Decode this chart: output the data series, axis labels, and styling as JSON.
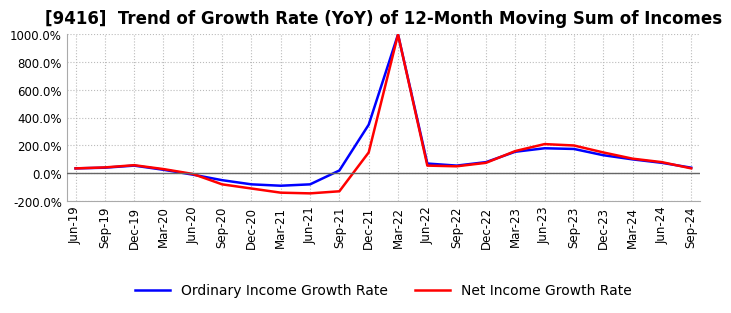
{
  "title": "[9416]  Trend of Growth Rate (YoY) of 12-Month Moving Sum of Incomes",
  "legend_labels": [
    "Ordinary Income Growth Rate",
    "Net Income Growth Rate"
  ],
  "line_colors": [
    "blue",
    "red"
  ],
  "ylim": [
    -200,
    1000
  ],
  "yticks": [
    -200,
    0,
    200,
    400,
    600,
    800,
    1000
  ],
  "ytick_labels": [
    "-200.0%",
    "0.0%",
    "200.0%",
    "400.0%",
    "600.0%",
    "800.0%",
    "1000.0%"
  ],
  "x_labels": [
    "Jun-19",
    "Sep-19",
    "Dec-19",
    "Mar-20",
    "Jun-20",
    "Sep-20",
    "Dec-20",
    "Mar-21",
    "Jun-21",
    "Sep-21",
    "Dec-21",
    "Mar-22",
    "Jun-22",
    "Sep-22",
    "Dec-22",
    "Mar-23",
    "Jun-23",
    "Sep-23",
    "Dec-23",
    "Mar-24",
    "Jun-24",
    "Sep-24"
  ],
  "ordinary_income_growth": [
    35,
    40,
    55,
    25,
    -10,
    -50,
    -80,
    -90,
    -80,
    20,
    350,
    1000,
    70,
    55,
    80,
    155,
    180,
    175,
    130,
    100,
    75,
    40
  ],
  "net_income_growth": [
    35,
    42,
    58,
    30,
    -5,
    -80,
    -110,
    -140,
    -145,
    -130,
    150,
    1000,
    55,
    50,
    75,
    160,
    210,
    200,
    150,
    105,
    80,
    35
  ],
  "background_color": "#ffffff",
  "grid_color": "#bbbbbb",
  "zero_line_color": "#666666",
  "title_fontsize": 12,
  "tick_fontsize": 8.5,
  "legend_fontsize": 10
}
